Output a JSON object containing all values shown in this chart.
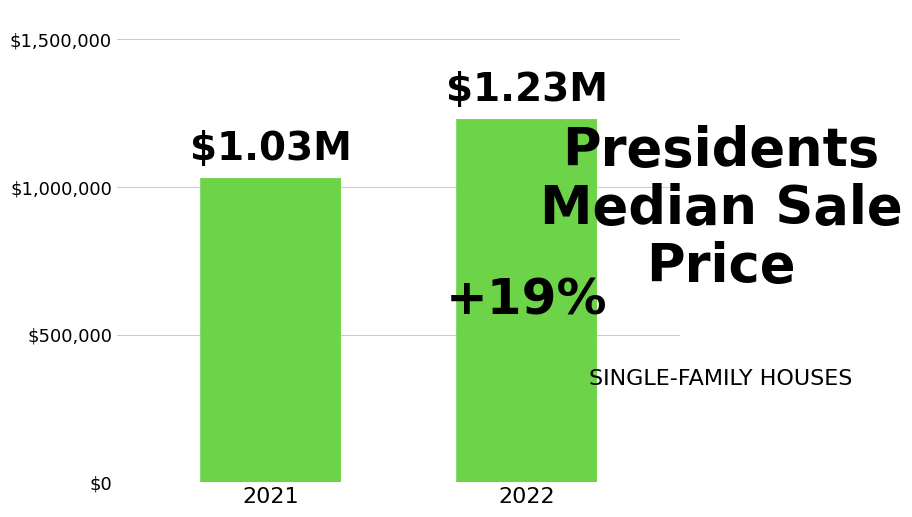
{
  "categories": [
    "2021",
    "2022"
  ],
  "values": [
    1030000,
    1230000
  ],
  "bar_color": "#6dd44a",
  "bar_labels": [
    "$1.03M",
    "$1.23M"
  ],
  "pct_label": "+19%",
  "pct_bar_index": 1,
  "ylim": [
    0,
    1600000
  ],
  "yticks": [
    0,
    500000,
    1000000,
    1500000
  ],
  "ytick_labels": [
    "$0",
    "$500,000",
    "$1,000,000",
    "$1,500,000"
  ],
  "title_line1": "Presidents",
  "title_line2": "Median Sale",
  "title_line3": "Price",
  "subtitle": "SINGLE-FAMILY HOUSES",
  "background_color": "#ffffff",
  "bar_label_fontsize": 28,
  "pct_label_fontsize": 36,
  "title_fontsize": 38,
  "subtitle_fontsize": 16,
  "tick_label_fontsize": 13,
  "xlabel_fontsize": 16
}
